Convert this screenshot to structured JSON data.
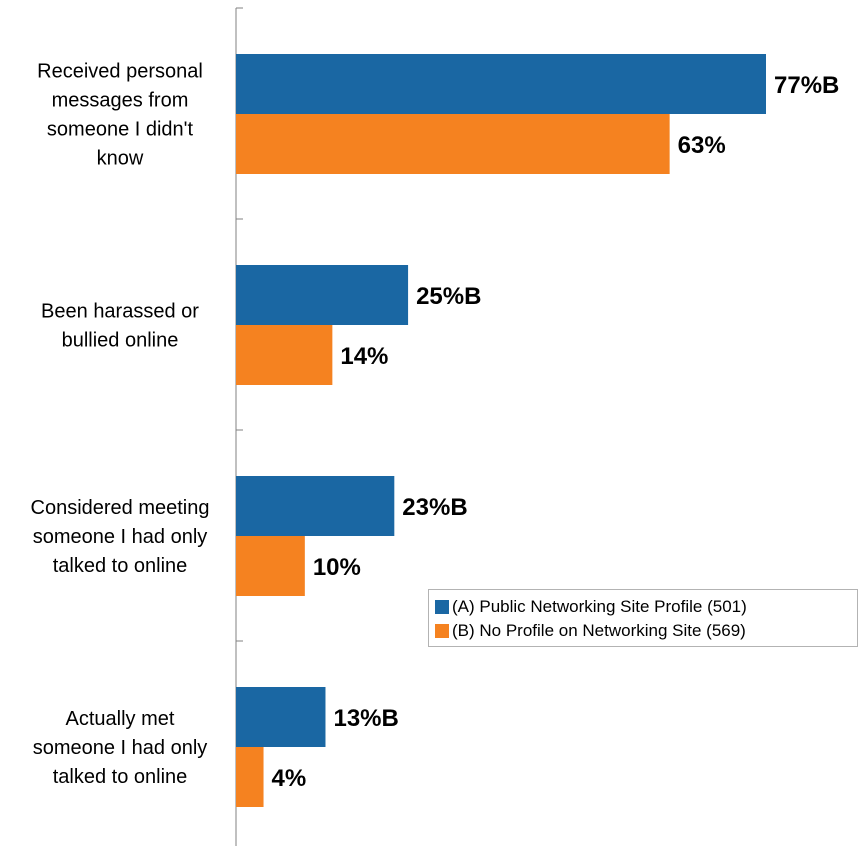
{
  "chart_data": {
    "type": "bar",
    "orientation": "horizontal",
    "categories": [
      [
        "Received personal",
        "messages from",
        "someone I didn't",
        "know"
      ],
      [
        "Been harassed or",
        "bullied online"
      ],
      [
        "Considered meeting",
        "someone I had only",
        "talked to online"
      ],
      [
        "Actually met",
        "someone I had only",
        "talked to online"
      ]
    ],
    "series": [
      {
        "name": "(A) Public Networking Site Profile (501)",
        "color": "#1a67a3",
        "values": [
          77,
          25,
          23,
          13
        ],
        "labels": [
          "77%B",
          "25%B",
          "23%B",
          "13%B"
        ]
      },
      {
        "name": "(B) No Profile on Networking Site (569)",
        "color": "#f58220",
        "values": [
          63,
          14,
          10,
          4
        ],
        "labels": [
          "63%",
          "14%",
          "10%",
          "4%"
        ]
      }
    ],
    "xlim": [
      0,
      100
    ],
    "grid": false,
    "legend_position": "bottom-right"
  }
}
